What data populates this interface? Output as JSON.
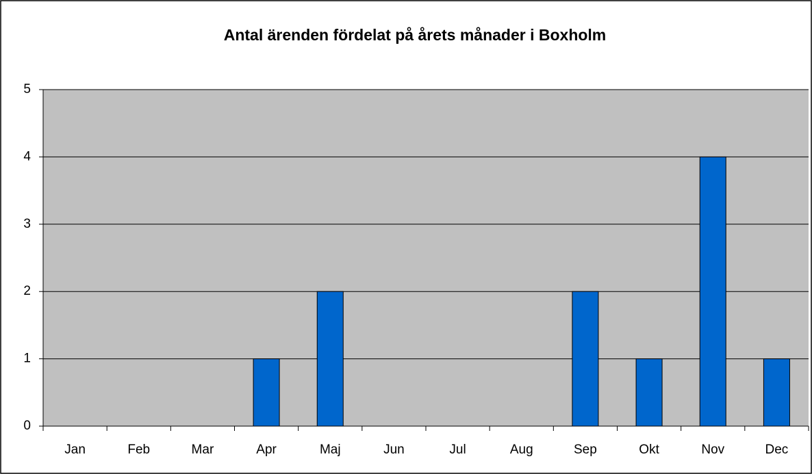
{
  "chart_data": {
    "type": "bar",
    "title": "Antal ärenden fördelat på årets månader i Boxholm",
    "categories": [
      "Jan",
      "Feb",
      "Mar",
      "Apr",
      "Maj",
      "Jun",
      "Jul",
      "Aug",
      "Sep",
      "Okt",
      "Nov",
      "Dec"
    ],
    "values": [
      0,
      0,
      0,
      1,
      2,
      0,
      0,
      0,
      2,
      1,
      4,
      1
    ],
    "color": "#0066cc",
    "ylim": [
      0,
      5
    ],
    "yticks": [
      0,
      1,
      2,
      3,
      4,
      5
    ],
    "grid": true
  }
}
